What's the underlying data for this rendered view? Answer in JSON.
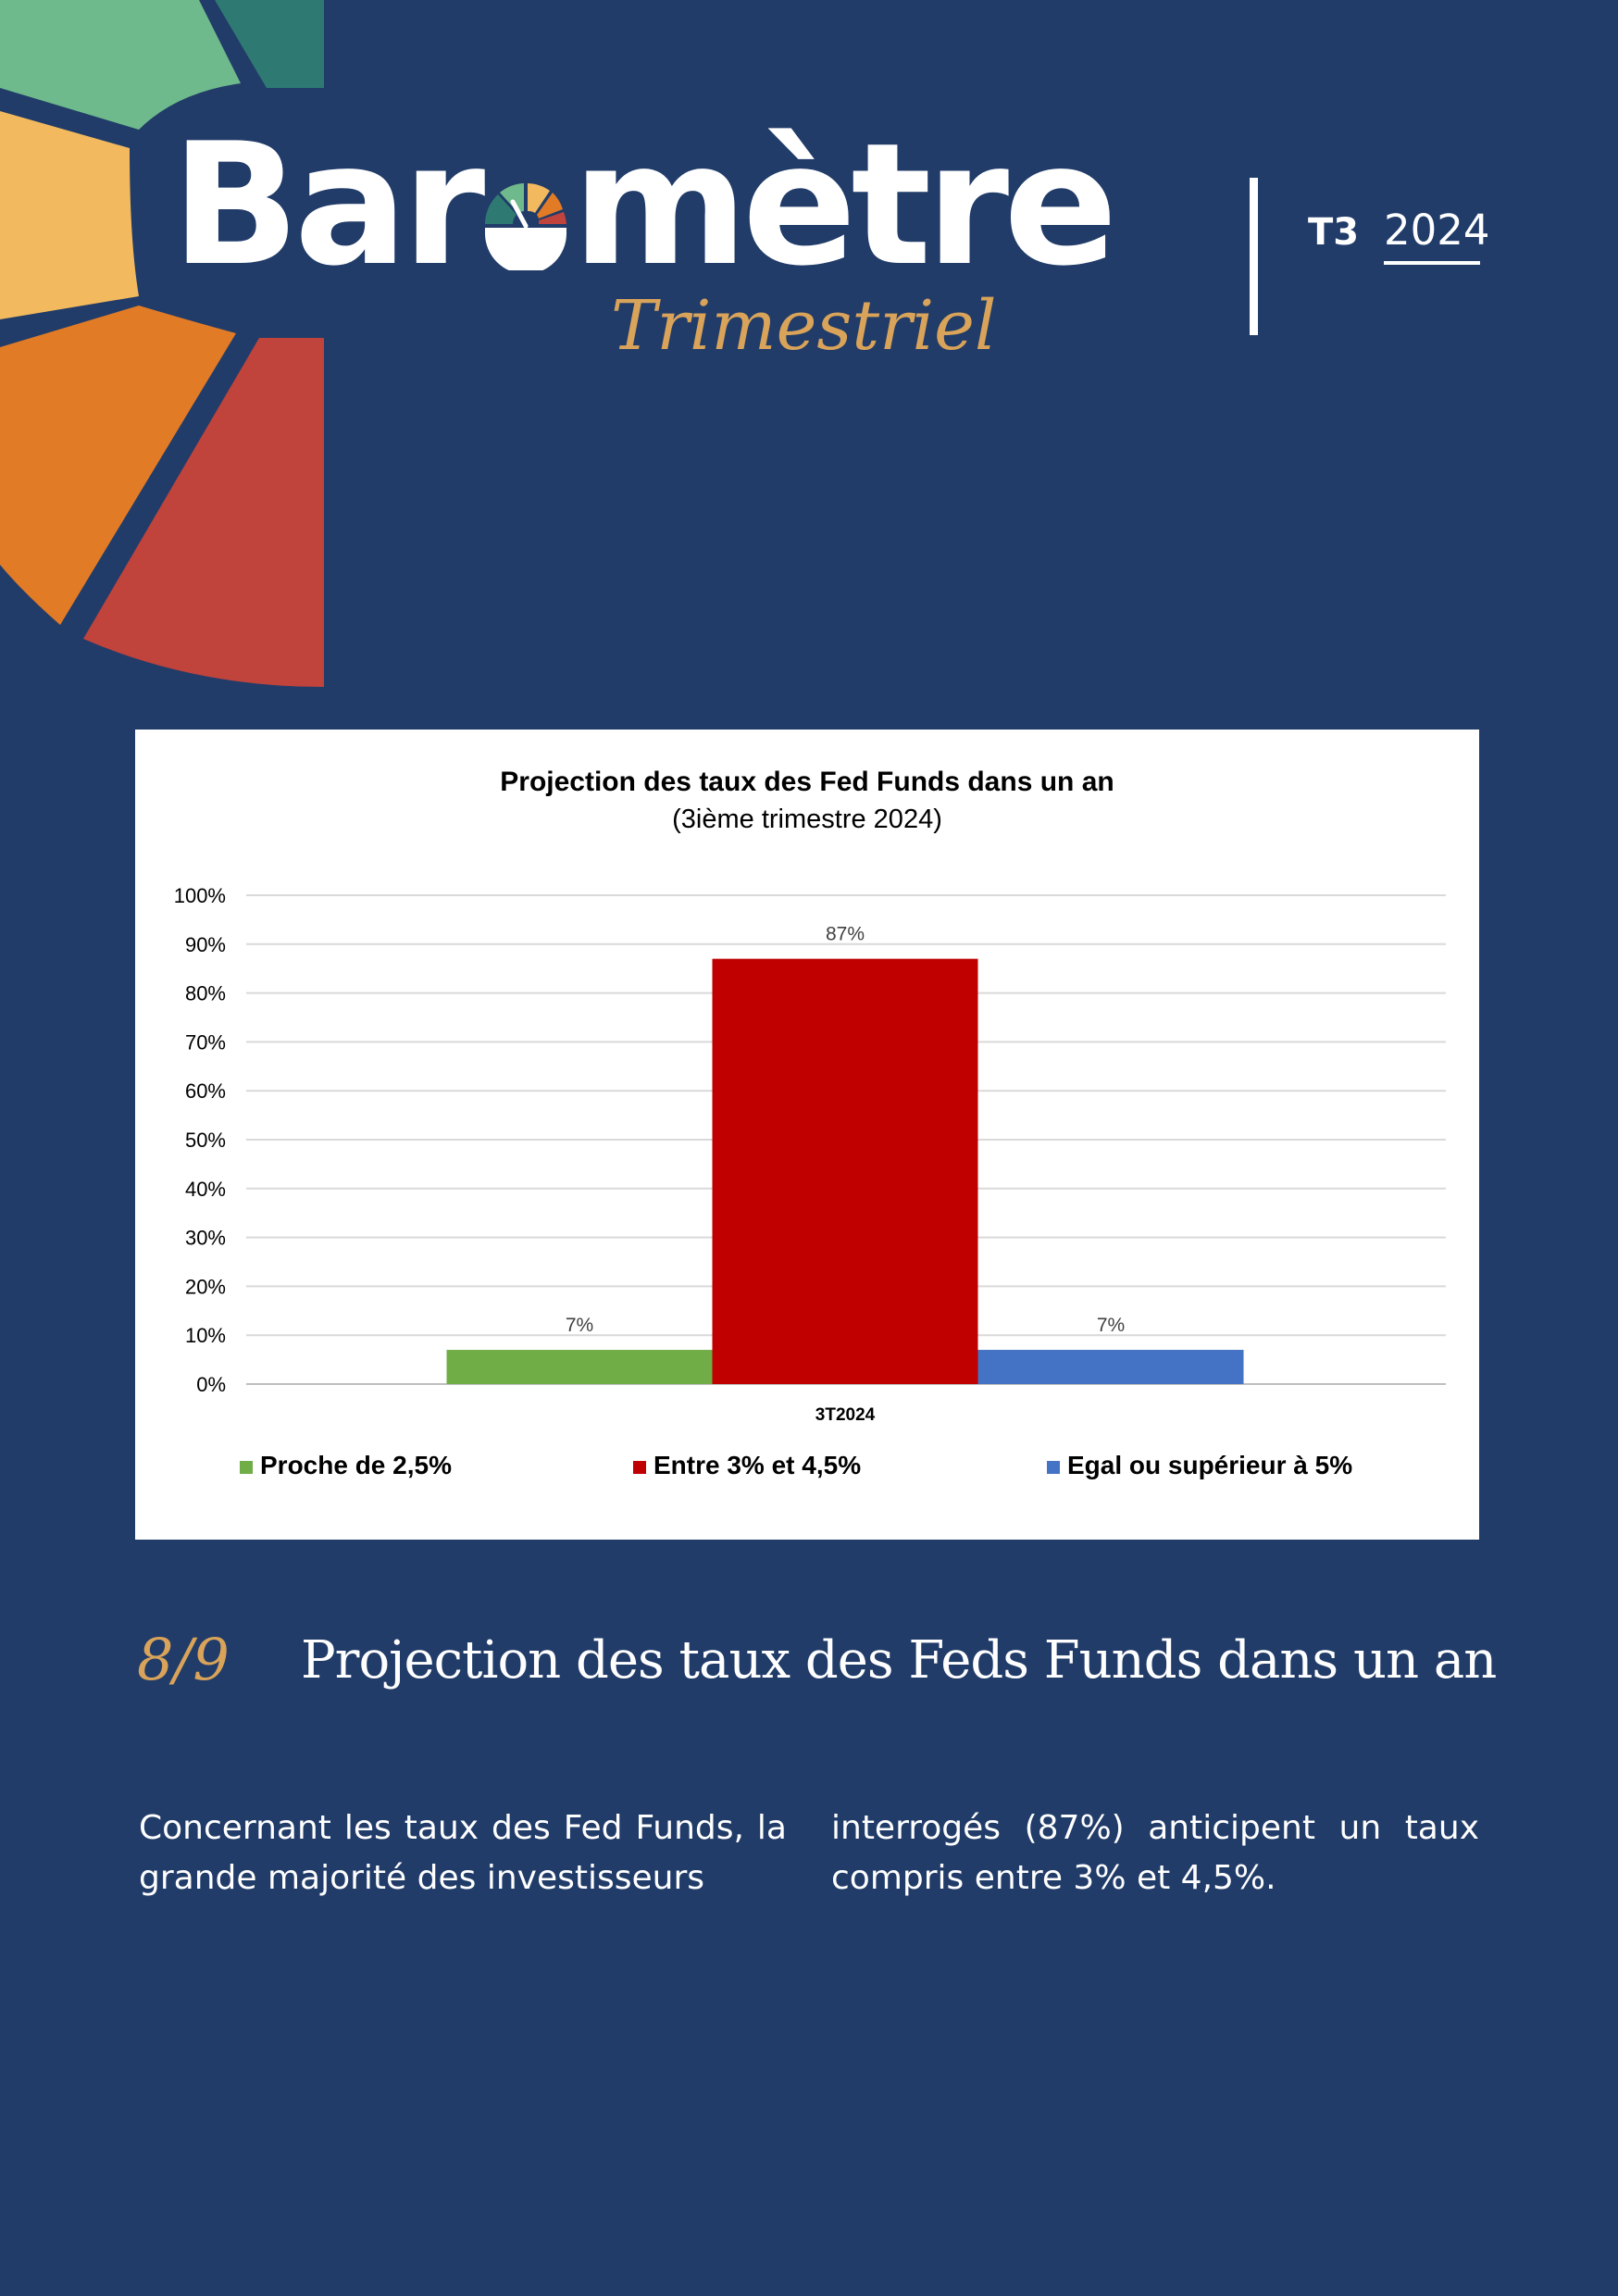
{
  "header": {
    "brand_title_before": "Bar",
    "brand_title_after": "mètre",
    "brand_subtitle": "Trimestriel",
    "quarter": "T3",
    "year": "2024"
  },
  "colors": {
    "background": "#213c69",
    "accent_gold": "#d9a35a",
    "petal_green": "#6fba8c",
    "petal_teal": "#2e7a73",
    "petal_yellow": "#f2b95e",
    "petal_orange": "#e17b26",
    "petal_red": "#c0433c"
  },
  "icons": [
    "gauge-icon",
    "color-petals-decoration"
  ],
  "chart_data": {
    "type": "bar",
    "title": "Projection des taux des Fed Funds dans un an",
    "subtitle": "(3ième trimestre 2024)",
    "categories": [
      "3T2024"
    ],
    "series": [
      {
        "name": "Proche de 2,5%",
        "values": [
          7
        ],
        "label": "7%",
        "color": "#70ad47"
      },
      {
        "name": "Entre 3% et 4,5%",
        "values": [
          87
        ],
        "label": "87%",
        "color": "#c00000"
      },
      {
        "name": "Egal ou supérieur à 5%",
        "values": [
          7
        ],
        "label": "7%",
        "color": "#4472c4"
      }
    ],
    "ylim": [
      0,
      100
    ],
    "yticks": [
      "0%",
      "10%",
      "20%",
      "30%",
      "40%",
      "50%",
      "60%",
      "70%",
      "80%",
      "90%",
      "100%"
    ],
    "grid": true,
    "legend": "bottom"
  },
  "section": {
    "number": "8/9",
    "title": "Projection des taux des Feds Funds dans un an"
  },
  "body": {
    "col1": "Concernant les taux des Fed Funds, la grande majorité des investisseurs",
    "col2": "interrogés (87%) anticipent un taux compris entre 3% et 4,5%."
  }
}
